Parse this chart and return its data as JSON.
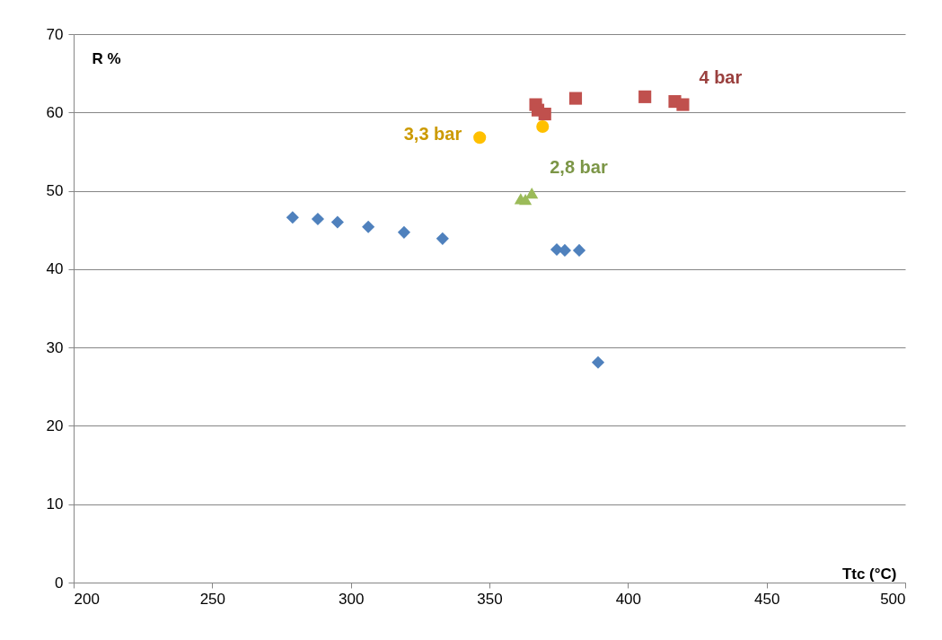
{
  "chart_data": {
    "type": "scatter",
    "xlabel": "Ttc (°C)",
    "ylabel": "R %",
    "xlim": [
      200,
      500
    ],
    "xticks": [
      200,
      250,
      300,
      350,
      400,
      450,
      500
    ],
    "ylim": [
      0,
      70
    ],
    "yticks": [
      0,
      10,
      20,
      30,
      40,
      50,
      60,
      70
    ],
    "grid": "y",
    "series": [
      {
        "color": "#4f81bd",
        "marker": "diamond",
        "x": [
          279.0,
          288.1,
          295.2,
          306.3,
          319.2,
          333.1,
          374.3,
          377.2,
          382.4,
          389.2
        ],
        "values": [
          46.6,
          46.4,
          46.0,
          45.4,
          44.7,
          43.9,
          42.5,
          42.4,
          42.4,
          28.1
        ]
      },
      {
        "name": "4 bar",
        "color": "#c0504d",
        "marker": "square",
        "x": [
          366.7,
          367.5,
          370.0,
          381.1,
          406.1,
          416.9,
          419.8
        ],
        "values": [
          61.0,
          60.3,
          59.8,
          61.8,
          62.0,
          61.4,
          61.0
        ]
      },
      {
        "name": "3,3 bar",
        "color": "#ffc000",
        "marker": "circle",
        "x": [
          346.5,
          369.2
        ],
        "values": [
          56.8,
          58.2
        ]
      },
      {
        "name": "2,8 bar",
        "color": "#9bbb59",
        "marker": "triangle",
        "x": [
          361.3,
          363.0,
          365.3
        ],
        "values": [
          49.0,
          48.9,
          49.7
        ]
      }
    ]
  }
}
